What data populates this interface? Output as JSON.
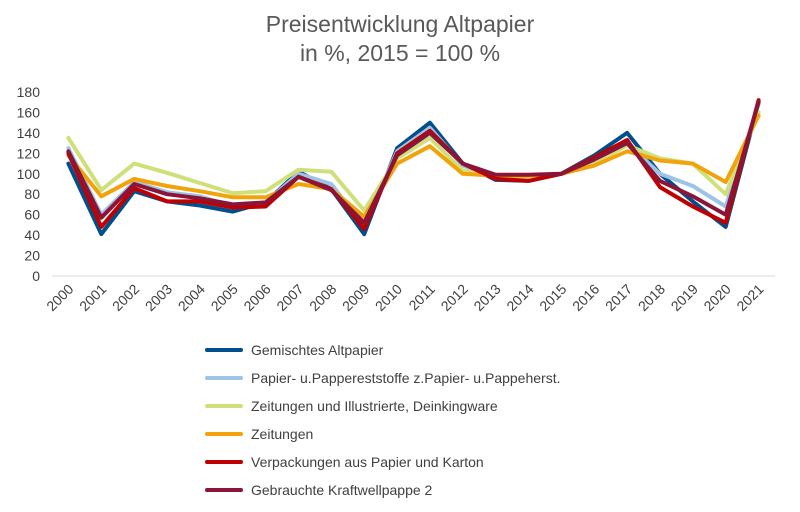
{
  "chart_data": {
    "type": "line",
    "title": "Preisentwicklung Altpapier",
    "subtitle": "in %, 2015 = 100 %",
    "categories": [
      "2000",
      "2001",
      "2002",
      "2003",
      "2004",
      "2005",
      "2006",
      "2007",
      "2008",
      "2009",
      "2010",
      "2011",
      "2012",
      "2013",
      "2014",
      "2015",
      "2016",
      "2017",
      "2018",
      "2019",
      "2020",
      "2021"
    ],
    "ylim": [
      0,
      180
    ],
    "yticks": [
      0,
      20,
      40,
      60,
      80,
      100,
      120,
      140,
      160,
      180
    ],
    "grid": false,
    "legend_position": "bottom",
    "series": [
      {
        "name": "Gemischtes Altpapier",
        "color": "#004f8c",
        "values": [
          110,
          41,
          83,
          73,
          69,
          63,
          72,
          102,
          85,
          41,
          125,
          150,
          110,
          94,
          93,
          100,
          118,
          140,
          100,
          73,
          48,
          170
        ]
      },
      {
        "name": "Papier- u.Pappereststoffe z.Papier- u.Pappeherst.",
        "color": "#9dc3e6",
        "values": [
          125,
          60,
          92,
          82,
          78,
          68,
          72,
          100,
          90,
          48,
          122,
          145,
          108,
          96,
          96,
          100,
          112,
          130,
          100,
          88,
          68,
          168
        ]
      },
      {
        "name": "Zeitungen und Illustrierte, Deinkingware",
        "color": "#cfe07a",
        "values": [
          135,
          84,
          110,
          101,
          91,
          81,
          83,
          104,
          102,
          64,
          115,
          135,
          103,
          97,
          96,
          100,
          110,
          128,
          115,
          110,
          80,
          160
        ]
      },
      {
        "name": "Zeitungen",
        "color": "#f0a30a",
        "values": [
          118,
          78,
          95,
          88,
          83,
          77,
          77,
          90,
          85,
          58,
          110,
          127,
          100,
          98,
          98,
          100,
          108,
          122,
          113,
          110,
          92,
          157
        ]
      },
      {
        "name": "Verpackungen aus Papier und Karton",
        "color": "#c00000",
        "values": [
          120,
          48,
          86,
          73,
          73,
          67,
          68,
          97,
          85,
          46,
          120,
          142,
          110,
          95,
          93,
          100,
          116,
          133,
          87,
          68,
          52,
          172
        ]
      },
      {
        "name": "Gebrauchte Kraftwellpappe 2",
        "color": "#8b1538",
        "values": [
          122,
          57,
          90,
          80,
          76,
          70,
          72,
          97,
          84,
          52,
          118,
          140,
          110,
          99,
          99,
          100,
          114,
          130,
          93,
          78,
          60,
          170
        ]
      }
    ]
  }
}
